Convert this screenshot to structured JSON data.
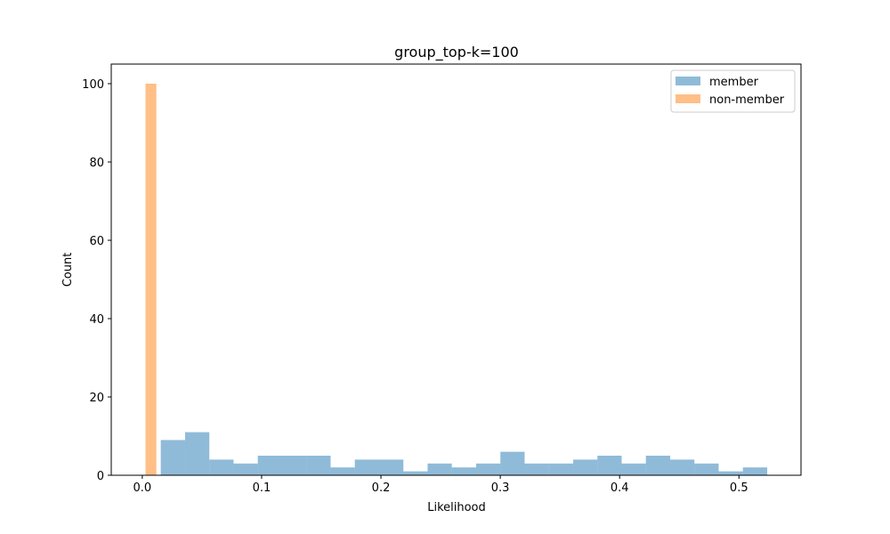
{
  "chart_data": {
    "type": "histogram",
    "title": "group_top-k=100",
    "xlabel": "Likelihood",
    "ylabel": "Count",
    "xlim": [
      -0.026,
      0.552
    ],
    "ylim": [
      0,
      105
    ],
    "xticks": [
      0.0,
      0.1,
      0.2,
      0.3,
      0.4,
      0.5
    ],
    "xtick_labels": [
      "0.0",
      "0.1",
      "0.2",
      "0.3",
      "0.4",
      "0.5"
    ],
    "yticks": [
      0,
      20,
      40,
      60,
      80,
      100
    ],
    "ytick_labels": [
      "0",
      "20",
      "40",
      "60",
      "80",
      "100"
    ],
    "legend": {
      "location": "top-right"
    },
    "series": [
      {
        "name": "member",
        "color": "#1f77b4",
        "alpha": 0.5,
        "bin_edges": [
          0.0155,
          0.0359,
          0.0562,
          0.0765,
          0.0968,
          0.1172,
          0.1375,
          0.1578,
          0.1781,
          0.1985,
          0.2188,
          0.2391,
          0.2594,
          0.2798,
          0.3001,
          0.3204,
          0.3407,
          0.3611,
          0.3814,
          0.4017,
          0.422,
          0.4424,
          0.4627,
          0.483,
          0.5033,
          0.5237
        ],
        "counts": [
          9,
          11,
          4,
          3,
          5,
          5,
          5,
          2,
          4,
          4,
          1,
          3,
          2,
          3,
          6,
          3,
          3,
          4,
          5,
          3,
          5,
          4,
          3,
          1,
          2
        ]
      },
      {
        "name": "non-member",
        "color": "#ff7f0e",
        "alpha": 0.5,
        "bin_edges": [
          0.0027,
          0.0118
        ],
        "counts": [
          100
        ]
      }
    ]
  }
}
